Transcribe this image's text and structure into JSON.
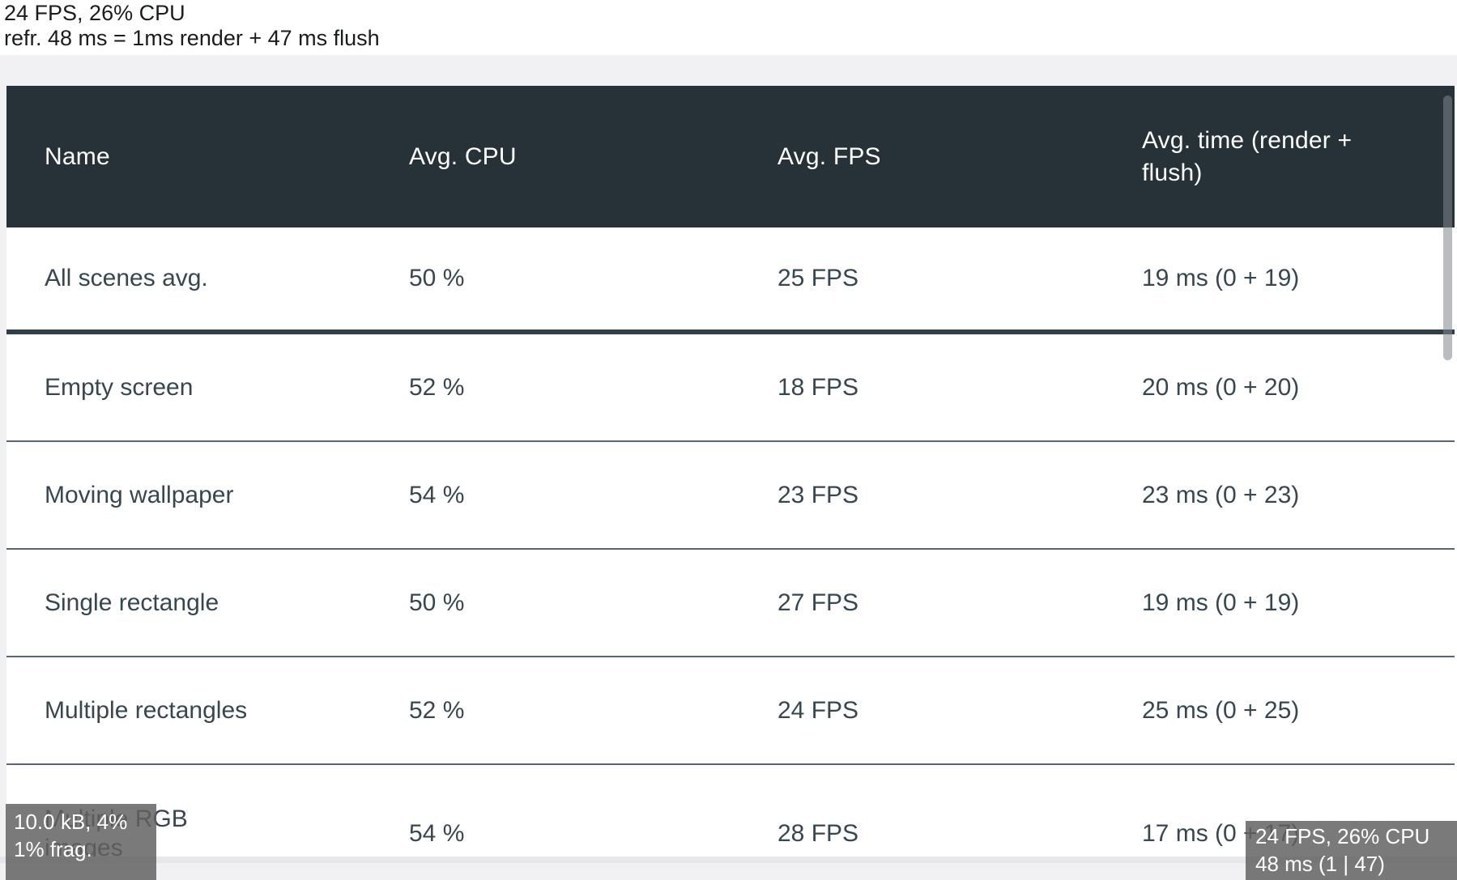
{
  "perf_summary_top": {
    "line1": "24 FPS, 26% CPU",
    "line2": "refr. 48 ms = 1ms render + 47 ms flush"
  },
  "table": {
    "columns": [
      {
        "label": "Name"
      },
      {
        "label": "Avg. CPU"
      },
      {
        "label": "Avg. FPS"
      },
      {
        "label": "Avg. time (render +\nflush)"
      }
    ],
    "rows": [
      {
        "name": "All scenes avg.",
        "cpu": "50 %",
        "fps": "25 FPS",
        "time": "19 ms (0 + 19)"
      },
      {
        "name": "Empty screen",
        "cpu": "52 %",
        "fps": "18 FPS",
        "time": "20 ms (0 + 20)"
      },
      {
        "name": "Moving wallpaper",
        "cpu": "54 %",
        "fps": "23 FPS",
        "time": "23 ms (0 + 23)"
      },
      {
        "name": "Single rectangle",
        "cpu": "50 %",
        "fps": "27 FPS",
        "time": "19 ms (0 + 19)"
      },
      {
        "name": "Multiple rectangles",
        "cpu": "52 %",
        "fps": "24 FPS",
        "time": "25 ms (0 + 25)"
      },
      {
        "name": "Multiple RGB\nimages",
        "cpu": "54 %",
        "fps": "28 FPS",
        "time": "17 ms (0 + 17)"
      }
    ]
  },
  "hud_bottom_left": {
    "line1": "10.0 kB, 4%",
    "line2": "1% frag."
  },
  "hud_bottom_right": {
    "line1": "24 FPS, 26% CPU",
    "line2": "48 ms (1 | 47)"
  },
  "colors": {
    "header_background": "#263238",
    "header_text": "#ffffff",
    "row_text": "#37474f",
    "thick_divider": "#2f3e47",
    "thin_divider": "#566672",
    "page_background": "#f1f1f4",
    "hud_background": "rgba(97,97,97,0.84)",
    "hud_text": "#ffffff"
  }
}
